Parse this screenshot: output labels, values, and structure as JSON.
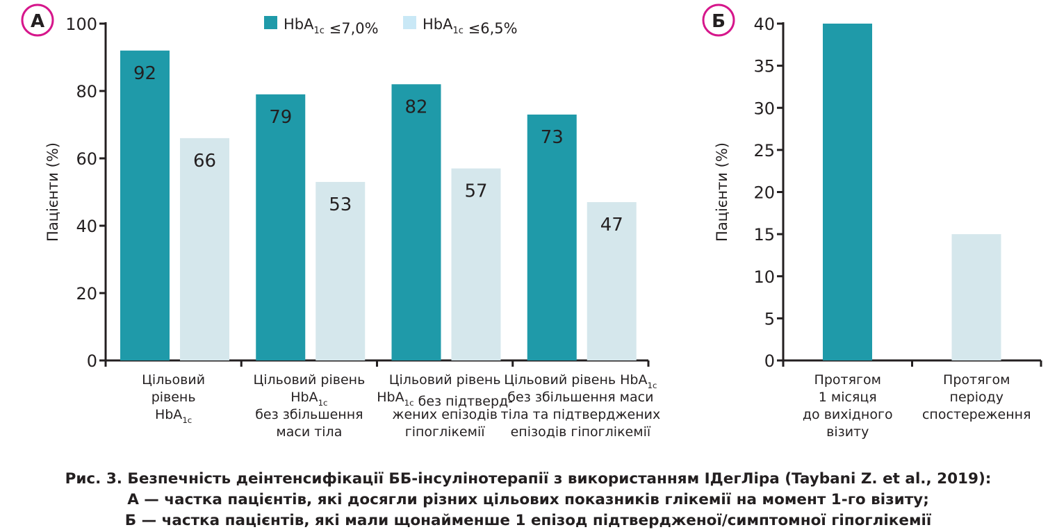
{
  "colors": {
    "primary": "#1f9aa9",
    "secondary": "#d5e7ec",
    "legend_secondary": "#c9e8f6",
    "panel_circle": "#d6168b",
    "axis": "#231f20"
  },
  "chart_data": [
    {
      "type": "bar",
      "panel_label": "А",
      "ylabel": "Пацієнти (%)",
      "ylim": [
        0,
        100
      ],
      "yticks": [
        0,
        20,
        40,
        60,
        80,
        100
      ],
      "legend": [
        "HbA1c ≤7,0%",
        "HbA1c ≤6,5%"
      ],
      "legend_placement": "top",
      "categories": [
        [
          "Цільовий",
          "рівень",
          "HbA1c"
        ],
        [
          "Цільовий рівень",
          "HbA1c",
          "без збільшення",
          "маси тіла"
        ],
        [
          "Цільовий рівень",
          "HbA1c без підтверд-",
          "жених епізодів",
          "гіпоглікемії"
        ],
        [
          "Цільовий рівень HbA1c",
          "без збільшення маси",
          "тіла та підтверджених",
          "епізодів гіпоглікемії"
        ]
      ],
      "series": [
        {
          "name": "HbA1c ≤7,0%",
          "values": [
            92,
            79,
            82,
            73
          ]
        },
        {
          "name": "HbA1c ≤6,5%",
          "values": [
            66,
            53,
            57,
            47
          ]
        }
      ],
      "data_labels": true
    },
    {
      "type": "bar",
      "panel_label": "Б",
      "ylabel": "Пацієнти (%)",
      "ylim": [
        0,
        40
      ],
      "yticks": [
        0,
        5,
        10,
        15,
        20,
        25,
        30,
        35,
        40
      ],
      "categories": [
        [
          "Протягом",
          "1 місяця",
          "до вихідного",
          "візиту"
        ],
        [
          "Протягом",
          "періоду",
          "спостереження"
        ]
      ],
      "values": [
        40,
        15
      ],
      "data_labels": false
    }
  ],
  "caption": [
    "Рис. 3. Безпечність деінтенсифікації ББ-інсулінотерапії з використанням IДегЛіра (Taybani Z. et al., 2019):",
    "А — частка пацієнтів, які досягли різних цільових показників глікемії на момент 1-го візиту;",
    "Б — частка пацієнтів, які мали щонайменше 1 епізод підтвердженої/симптомної гіпоглікемії"
  ]
}
